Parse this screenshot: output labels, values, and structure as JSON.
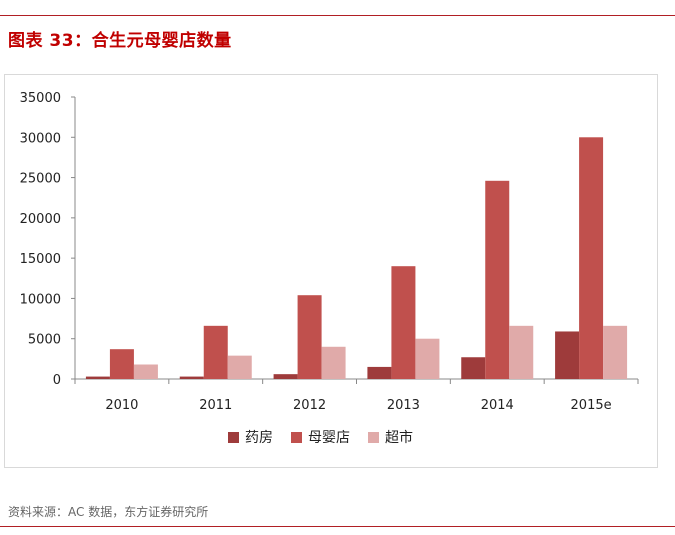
{
  "title": "图表 33：合生元母婴店数量",
  "source": "资料来源：AC 数据，东方证券研究所",
  "colors": {
    "rule": "#b11f24",
    "title": "#c00000",
    "series": [
      "#9e3b3b",
      "#c0504d",
      "#e0aaa9"
    ]
  },
  "chart_data": {
    "type": "bar",
    "title": "",
    "xlabel": "",
    "ylabel": "",
    "ylim": [
      0,
      35000
    ],
    "yticks": [
      0,
      5000,
      10000,
      15000,
      20000,
      25000,
      30000,
      35000
    ],
    "grid": false,
    "legend_position": "bottom",
    "categories": [
      "2010",
      "2011",
      "2012",
      "2013",
      "2014",
      "2015e"
    ],
    "series": [
      {
        "name": "药房",
        "values": [
          300,
          300,
          600,
          1500,
          2700,
          5900
        ]
      },
      {
        "name": "母婴店",
        "values": [
          3700,
          6600,
          10400,
          14000,
          24600,
          30000
        ]
      },
      {
        "name": "超市",
        "values": [
          1800,
          2900,
          4000,
          5000,
          6600,
          6600
        ]
      }
    ]
  }
}
